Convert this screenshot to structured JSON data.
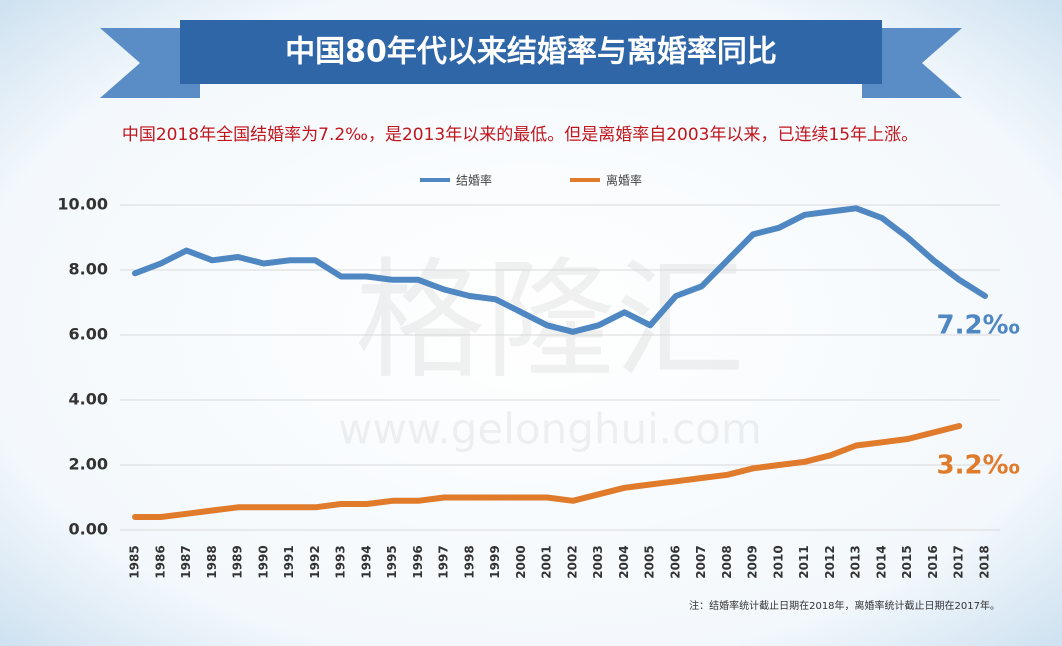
{
  "chart_data": {
    "type": "line",
    "title": "中国80年代以来结婚率与离婚率同比",
    "subtitle": "中国2018年全国结婚率为7.2‰，是2013年以来的最低。但是离婚率自2003年以来，已连续15年上涨。",
    "note": "注：结婚率统计截止日期在2018年，离婚率统计截止日期在2017年。",
    "watermark": [
      "格隆汇",
      "www.gelonghui.com"
    ],
    "categories": [
      "1985",
      "1986",
      "1987",
      "1988",
      "1989",
      "1990",
      "1991",
      "1992",
      "1993",
      "1994",
      "1995",
      "1996",
      "1997",
      "1998",
      "1999",
      "2000",
      "2001",
      "2002",
      "2003",
      "2004",
      "2005",
      "2006",
      "2007",
      "2008",
      "2009",
      "2010",
      "2011",
      "2012",
      "2013",
      "2014",
      "2015",
      "2016",
      "2017",
      "2018"
    ],
    "series": [
      {
        "name": "结婚率",
        "color": "#4f87c2",
        "values": [
          7.9,
          8.2,
          8.6,
          8.3,
          8.4,
          8.2,
          8.3,
          8.3,
          7.8,
          7.8,
          7.7,
          7.7,
          7.4,
          7.2,
          7.1,
          6.7,
          6.3,
          6.1,
          6.3,
          6.7,
          6.3,
          7.2,
          7.5,
          8.3,
          9.1,
          9.3,
          9.7,
          9.8,
          9.9,
          9.6,
          9.0,
          8.3,
          7.7,
          7.2
        ]
      },
      {
        "name": "离婚率",
        "color": "#e07b2c",
        "values": [
          0.4,
          0.4,
          0.5,
          0.6,
          0.7,
          0.7,
          0.7,
          0.7,
          0.8,
          0.8,
          0.9,
          0.9,
          1.0,
          1.0,
          1.0,
          1.0,
          1.0,
          0.9,
          1.1,
          1.3,
          1.4,
          1.5,
          1.6,
          1.7,
          1.9,
          2.0,
          2.1,
          2.3,
          2.6,
          2.7,
          2.8,
          3.0,
          3.2,
          null
        ]
      }
    ],
    "annotations": [
      {
        "text": "7.2‰",
        "series": 0
      },
      {
        "text": "3.2‰",
        "series": 1
      }
    ],
    "ylim": [
      0,
      10
    ],
    "yticks": [
      {
        "value": 0,
        "label": "0.00"
      },
      {
        "value": 2,
        "label": "2.00"
      },
      {
        "value": 4,
        "label": "4.00"
      },
      {
        "value": 6,
        "label": "6.00"
      },
      {
        "value": 8,
        "label": "8.00"
      },
      {
        "value": 10,
        "label": "10.00"
      }
    ],
    "grid": true,
    "legend": "top"
  }
}
